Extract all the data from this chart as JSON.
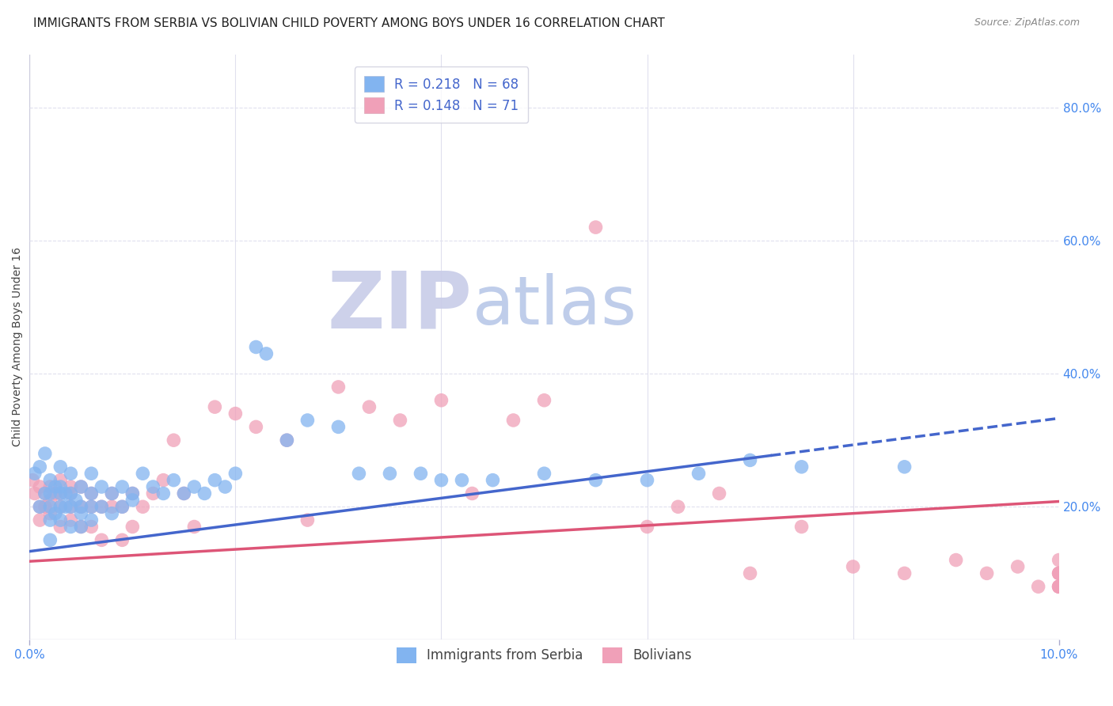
{
  "title": "IMMIGRANTS FROM SERBIA VS BOLIVIAN CHILD POVERTY AMONG BOYS UNDER 16 CORRELATION CHART",
  "source": "Source: ZipAtlas.com",
  "ylabel": "Child Poverty Among Boys Under 16",
  "xlim": [
    0.0,
    0.1
  ],
  "ylim": [
    0.0,
    0.88
  ],
  "yticks_right": [
    0.2,
    0.4,
    0.6,
    0.8
  ],
  "ytick_right_labels": [
    "20.0%",
    "40.0%",
    "60.0%",
    "80.0%"
  ],
  "legend_line1": "R = 0.218   N = 68",
  "legend_line2": "R = 0.148   N = 71",
  "serbia_scatter_x": [
    0.0005,
    0.001,
    0.001,
    0.0015,
    0.0015,
    0.002,
    0.002,
    0.002,
    0.002,
    0.002,
    0.0025,
    0.0025,
    0.003,
    0.003,
    0.003,
    0.003,
    0.003,
    0.0035,
    0.0035,
    0.004,
    0.004,
    0.004,
    0.004,
    0.0045,
    0.005,
    0.005,
    0.005,
    0.005,
    0.006,
    0.006,
    0.006,
    0.006,
    0.007,
    0.007,
    0.008,
    0.008,
    0.009,
    0.009,
    0.01,
    0.01,
    0.011,
    0.012,
    0.013,
    0.014,
    0.015,
    0.016,
    0.017,
    0.018,
    0.019,
    0.02,
    0.022,
    0.023,
    0.025,
    0.027,
    0.03,
    0.032,
    0.035,
    0.038,
    0.04,
    0.042,
    0.045,
    0.05,
    0.055,
    0.06,
    0.065,
    0.07,
    0.075,
    0.085
  ],
  "serbia_scatter_y": [
    0.25,
    0.2,
    0.26,
    0.22,
    0.28,
    0.24,
    0.2,
    0.22,
    0.18,
    0.15,
    0.23,
    0.19,
    0.22,
    0.2,
    0.18,
    0.26,
    0.23,
    0.2,
    0.22,
    0.2,
    0.25,
    0.17,
    0.22,
    0.21,
    0.2,
    0.23,
    0.19,
    0.17,
    0.22,
    0.2,
    0.25,
    0.18,
    0.23,
    0.2,
    0.22,
    0.19,
    0.23,
    0.2,
    0.22,
    0.21,
    0.25,
    0.23,
    0.22,
    0.24,
    0.22,
    0.23,
    0.22,
    0.24,
    0.23,
    0.25,
    0.44,
    0.43,
    0.3,
    0.33,
    0.32,
    0.25,
    0.25,
    0.25,
    0.24,
    0.24,
    0.24,
    0.25,
    0.24,
    0.24,
    0.25,
    0.27,
    0.26,
    0.26
  ],
  "bolivia_scatter_x": [
    0.0003,
    0.0005,
    0.001,
    0.001,
    0.001,
    0.0015,
    0.0015,
    0.002,
    0.002,
    0.002,
    0.0025,
    0.003,
    0.003,
    0.003,
    0.003,
    0.004,
    0.004,
    0.004,
    0.004,
    0.005,
    0.005,
    0.005,
    0.006,
    0.006,
    0.006,
    0.007,
    0.007,
    0.008,
    0.008,
    0.009,
    0.009,
    0.01,
    0.01,
    0.011,
    0.012,
    0.013,
    0.014,
    0.015,
    0.016,
    0.018,
    0.02,
    0.022,
    0.025,
    0.027,
    0.03,
    0.033,
    0.036,
    0.04,
    0.043,
    0.047,
    0.05,
    0.055,
    0.06,
    0.063,
    0.067,
    0.07,
    0.075,
    0.08,
    0.085,
    0.09,
    0.093,
    0.096,
    0.098,
    0.1,
    0.1,
    0.1,
    0.1,
    0.1,
    0.1,
    0.1,
    0.1
  ],
  "bolivia_scatter_y": [
    0.24,
    0.22,
    0.23,
    0.2,
    0.18,
    0.22,
    0.2,
    0.23,
    0.21,
    0.19,
    0.22,
    0.2,
    0.24,
    0.17,
    0.22,
    0.2,
    0.23,
    0.18,
    0.22,
    0.2,
    0.23,
    0.17,
    0.2,
    0.22,
    0.17,
    0.2,
    0.15,
    0.22,
    0.2,
    0.2,
    0.15,
    0.22,
    0.17,
    0.2,
    0.22,
    0.24,
    0.3,
    0.22,
    0.17,
    0.35,
    0.34,
    0.32,
    0.3,
    0.18,
    0.38,
    0.35,
    0.33,
    0.36,
    0.22,
    0.33,
    0.36,
    0.62,
    0.17,
    0.2,
    0.22,
    0.1,
    0.17,
    0.11,
    0.1,
    0.12,
    0.1,
    0.11,
    0.08,
    0.1,
    0.12,
    0.1,
    0.08,
    0.08,
    0.1,
    0.08,
    0.08
  ],
  "serbia_color": "#82b4f0",
  "bolivia_color": "#f0a0b8",
  "serbia_line_color": "#4466cc",
  "bolivia_line_color": "#dd5577",
  "grid_color": "#e0e0ee",
  "background_color": "#ffffff",
  "watermark_zip_color": "#c8cce8",
  "watermark_atlas_color": "#b8c8e8",
  "title_fontsize": 11,
  "axis_label_fontsize": 10,
  "tick_fontsize": 11,
  "right_tick_color": "#4488ee",
  "x_tick_color": "#4488ee",
  "serbia_trend_intercept": 0.133,
  "serbia_trend_slope": 2.0,
  "bolivia_trend_intercept": 0.118,
  "bolivia_trend_slope": 0.9
}
